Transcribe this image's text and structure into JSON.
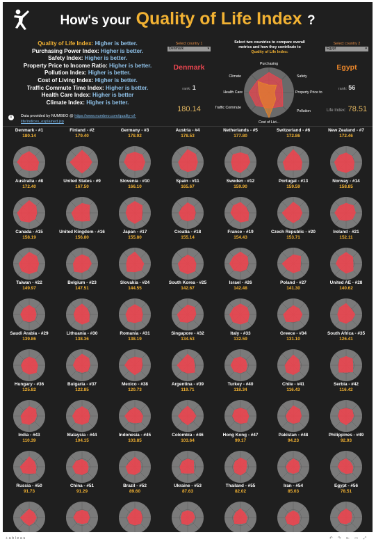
{
  "header": {
    "title_prefix": "How's your",
    "title_highlight": "Quality of Life Index",
    "title_suffix": "?"
  },
  "legend": [
    {
      "name": "Quality of Life Index:",
      "rule": "Higher is better."
    },
    {
      "name": "Purchasing Power Index:",
      "rule": "Higher is better."
    },
    {
      "name": "Safety Index:",
      "rule": "Higher is better."
    },
    {
      "name": "Property Price to Income Ratio:",
      "rule": "Higher is better."
    },
    {
      "name": "Pollution Index:",
      "rule": "Higher is better."
    },
    {
      "name": "Cost of Living Index:",
      "rule": "Higher is better."
    },
    {
      "name": "Traffic Commute Time Index:",
      "rule": "Higher is better."
    },
    {
      "name": "Health Care Index:",
      "rule": "Higher is better"
    },
    {
      "name": "Climate Index:",
      "rule": "Higher is better."
    }
  ],
  "source": {
    "prefix": "Data provided by NUMBEO @",
    "link": "https://www.numbeo.com/quality-of-life/indices_explained.jsp"
  },
  "compare": {
    "hint_line1": "Select two countries to compare overall",
    "hint_line2": "metrics and how they contribute to",
    "hint_line3": "Quality of Life Index:",
    "left": {
      "select_label": "Select country 1",
      "selected": "Denmark",
      "name": "Denmark",
      "rank_label": "rank:",
      "rank": "1",
      "value": "180.14",
      "color": "#e8454f"
    },
    "right": {
      "select_label": "Select country 2",
      "selected": "Egypt",
      "name": "Egypt",
      "rank_label": "rank:",
      "rank": "56",
      "value_label": "Life Index:",
      "value": "78.51",
      "color": "#e8852a"
    },
    "axes": [
      "Purchasing",
      "Safety",
      "Property Price to",
      "Pollution",
      "Cost of Livi...",
      "Traffic Commute",
      "Health Care",
      "Climate"
    ]
  },
  "countries": [
    {
      "name": "Denmark - #1",
      "value": "180.14"
    },
    {
      "name": "Finland - #2",
      "value": "179.40"
    },
    {
      "name": "Germany - #3",
      "value": "178.92"
    },
    {
      "name": "Austria - #4",
      "value": "178.53"
    },
    {
      "name": "Netherlands - #5",
      "value": "177.80"
    },
    {
      "name": "Switzerland - #6",
      "value": "172.86"
    },
    {
      "name": "New Zealand - #7",
      "value": "172.46"
    },
    {
      "name": "Australia - #8",
      "value": "172.40"
    },
    {
      "name": "United States - #9",
      "value": "167.50"
    },
    {
      "name": "Slovenia - #10",
      "value": "166.10"
    },
    {
      "name": "Spain - #11",
      "value": "165.67"
    },
    {
      "name": "Sweden - #12",
      "value": "159.90"
    },
    {
      "name": "Portugal - #13",
      "value": "159.59"
    },
    {
      "name": "Norway - #14",
      "value": "158.85"
    },
    {
      "name": "Canada - #15",
      "value": "158.19"
    },
    {
      "name": "United Kingdom - #16",
      "value": "156.80"
    },
    {
      "name": "Japan - #17",
      "value": "155.80"
    },
    {
      "name": "Croatia - #18",
      "value": "155.14"
    },
    {
      "name": "France - #19",
      "value": "154.43"
    },
    {
      "name": "Czech Republic - #20",
      "value": "153.71"
    },
    {
      "name": "Ireland - #21",
      "value": "152.11"
    },
    {
      "name": "Taiwan - #22",
      "value": "149.97"
    },
    {
      "name": "Belgium - #23",
      "value": "147.51"
    },
    {
      "name": "Slovakia - #24",
      "value": "144.55"
    },
    {
      "name": "South Korea - #25",
      "value": "142.67"
    },
    {
      "name": "Israel - #26",
      "value": "142.48"
    },
    {
      "name": "Poland - #27",
      "value": "141.30"
    },
    {
      "name": "United AE - #28",
      "value": "140.62"
    },
    {
      "name": "Saudi Arabia - #29",
      "value": "139.86"
    },
    {
      "name": "Lithuania - #30",
      "value": "138.36"
    },
    {
      "name": "Romania - #31",
      "value": "138.19"
    },
    {
      "name": "Singapore - #32",
      "value": "134.53"
    },
    {
      "name": "Italy - #33",
      "value": "132.59"
    },
    {
      "name": "Greece - #34",
      "value": "131.10"
    },
    {
      "name": "South Africa - #35",
      "value": "126.41"
    },
    {
      "name": "Hungary - #36",
      "value": "125.82"
    },
    {
      "name": "Bulgaria - #37",
      "value": "122.85"
    },
    {
      "name": "Mexico - #38",
      "value": "120.73"
    },
    {
      "name": "Argentina - #39",
      "value": "119.71"
    },
    {
      "name": "Turkey - #40",
      "value": "118.34"
    },
    {
      "name": "Chile - #41",
      "value": "116.43"
    },
    {
      "name": "Serbia - #42",
      "value": "116.42"
    },
    {
      "name": "India - #43",
      "value": "110.39"
    },
    {
      "name": "Malaysia - #44",
      "value": "104.15"
    },
    {
      "name": "Indonesia - #45",
      "value": "103.85"
    },
    {
      "name": "Colombia - #46",
      "value": "103.64"
    },
    {
      "name": "Hong Kong - #47",
      "value": "99.17"
    },
    {
      "name": "Pakistan - #48",
      "value": "94.23"
    },
    {
      "name": "Philippines - #49",
      "value": "92.93"
    },
    {
      "name": "Russia - #50",
      "value": "91.73"
    },
    {
      "name": "China - #51",
      "value": "91.29"
    },
    {
      "name": "Brazil - #52",
      "value": "89.60"
    },
    {
      "name": "Ukraine - #53",
      "value": "87.63"
    },
    {
      "name": "Thailand - #55",
      "value": "82.02"
    },
    {
      "name": "Iran - #54",
      "value": "85.03"
    },
    {
      "name": "Egypt - #56",
      "value": "78.51"
    }
  ],
  "footer": {
    "brand": "+ a b l e a u"
  },
  "colors": {
    "background": "#1f1f1f",
    "accent": "#f2b233",
    "better": "#8fc1e8",
    "radar_fill": "#e8454f",
    "radar_bg": "#7a7a7a"
  }
}
